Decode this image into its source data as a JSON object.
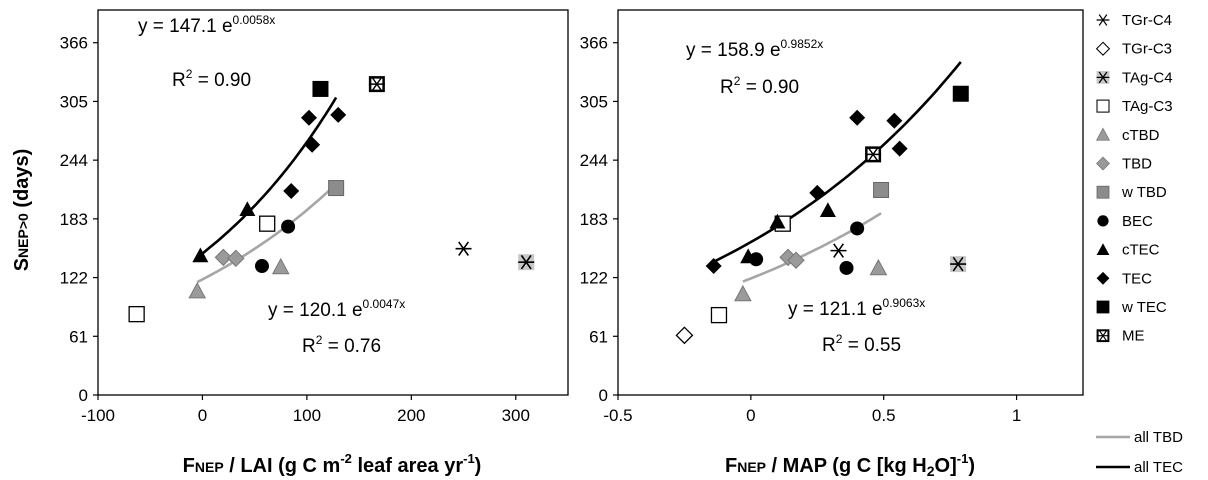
{
  "y_axis_label": {
    "main": "S",
    "sub": "NEP>0",
    "rest": " (days)"
  },
  "legend": {
    "items": [
      {
        "label": "TGr-C4",
        "marker": "asterisk-icon",
        "color": "#000000"
      },
      {
        "label": "TGr-C3",
        "marker": "open-diamond-icon",
        "color": "#000000"
      },
      {
        "label": "TAg-C4",
        "marker": "grey-square-asterisk-icon",
        "color": "#c8c8c8"
      },
      {
        "label": "TAg-C3",
        "marker": "open-square-icon",
        "color": "#000000"
      },
      {
        "label": "cTBD",
        "marker": "grey-triangle-icon",
        "color": "#9a9a9a"
      },
      {
        "label": "TBD",
        "marker": "grey-diamond-icon",
        "color": "#9a9a9a"
      },
      {
        "label": "w TBD",
        "marker": "grey-square-icon",
        "color": "#8c8c8c"
      },
      {
        "label": "BEC",
        "marker": "black-circle-icon",
        "color": "#000000"
      },
      {
        "label": "cTEC",
        "marker": "black-triangle-icon",
        "color": "#000000"
      },
      {
        "label": "TEC",
        "marker": "black-diamond-icon",
        "color": "#000000"
      },
      {
        "label": "w TEC",
        "marker": "black-square-icon",
        "color": "#000000"
      },
      {
        "label": "ME",
        "marker": "boxed-asterisk-icon",
        "color": "#000000"
      }
    ],
    "lines": [
      {
        "label": "all TBD",
        "color": "#a6a6a6"
      },
      {
        "label": "all TEC",
        "color": "#000000"
      }
    ]
  },
  "chart_data": [
    {
      "type": "scatter",
      "x_axis": {
        "label_main": "F",
        "label_sub": "NEP",
        "label_rest": " / LAI  (g C m",
        "label_sup": "-2",
        "label_tail": " leaf area yr",
        "label_sup2": "-1",
        "label_end": ")",
        "range": [
          -100,
          350
        ],
        "ticks": [
          -100,
          0,
          100,
          200,
          300
        ]
      },
      "y_axis": {
        "range": [
          0,
          400
        ],
        "ticks": [
          0,
          61,
          122,
          183,
          244,
          305,
          366
        ]
      },
      "series": [
        {
          "name": "TGr-C4",
          "marker": "asterisk",
          "points": [
            [
              250,
              152
            ]
          ]
        },
        {
          "name": "TAg-C4",
          "marker": "grey-square-asterisk",
          "points": [
            [
              310,
              138
            ]
          ]
        },
        {
          "name": "TAg-C3",
          "marker": "open-square",
          "points": [
            [
              -63,
              84
            ],
            [
              62,
              178
            ]
          ]
        },
        {
          "name": "cTBD",
          "marker": "grey-triangle",
          "points": [
            [
              -5,
              108
            ],
            [
              75,
              133
            ]
          ]
        },
        {
          "name": "TBD",
          "marker": "grey-diamond",
          "points": [
            [
              20,
              143
            ],
            [
              32,
              142
            ]
          ]
        },
        {
          "name": "w TBD",
          "marker": "grey-square",
          "points": [
            [
              128,
              215
            ]
          ]
        },
        {
          "name": "BEC",
          "marker": "black-circle",
          "points": [
            [
              57,
              134
            ],
            [
              82,
              175
            ]
          ]
        },
        {
          "name": "cTEC",
          "marker": "black-triangle",
          "points": [
            [
              -2,
              145
            ],
            [
              43,
              193
            ]
          ]
        },
        {
          "name": "TEC",
          "marker": "black-diamond",
          "points": [
            [
              85,
              212
            ],
            [
              102,
              288
            ],
            [
              105,
              260
            ],
            [
              130,
              291
            ]
          ]
        },
        {
          "name": "w TEC",
          "marker": "black-square",
          "points": [
            [
              113,
              318
            ]
          ]
        },
        {
          "name": "ME",
          "marker": "boxed-asterisk",
          "points": [
            [
              167,
              323
            ]
          ]
        }
      ],
      "fits": [
        {
          "name": "all TEC",
          "a": 147.1,
          "b": 0.0058,
          "x_range": [
            -5,
            128
          ],
          "color": "#000000",
          "equation": {
            "prefix": "y = 147.1 e",
            "exponent": "0.0058x"
          },
          "r2": {
            "prefix": "R",
            "sup": "2",
            "suffix": " = 0.90"
          }
        },
        {
          "name": "all TBD",
          "a": 120.1,
          "b": 0.0047,
          "x_range": [
            -5,
            128
          ],
          "color": "#a6a6a6",
          "equation": {
            "prefix": "y = 120.1 e",
            "exponent": "0.0047x"
          },
          "r2": {
            "prefix": "R",
            "sup": "2",
            "suffix": " = 0.76"
          }
        }
      ]
    },
    {
      "type": "scatter",
      "x_axis": {
        "label_main": "F",
        "label_sub": "NEP",
        "label_rest": " / MAP  (g C [kg H",
        "label_sub2": "2",
        "label_tail": "O]",
        "label_sup": "-1",
        "label_end": ")",
        "range": [
          -0.5,
          1.25
        ],
        "ticks": [
          "-0.5",
          "0",
          "0.5",
          "1"
        ]
      },
      "y_axis": {
        "range": [
          0,
          400
        ],
        "ticks": [
          0,
          61,
          122,
          183,
          244,
          305,
          366
        ]
      },
      "series": [
        {
          "name": "TGr-C4",
          "marker": "asterisk",
          "points": [
            [
              0.33,
              150
            ]
          ]
        },
        {
          "name": "TGr-C3",
          "marker": "open-diamond",
          "points": [
            [
              -0.25,
              62
            ]
          ]
        },
        {
          "name": "TAg-C4",
          "marker": "grey-square-asterisk",
          "points": [
            [
              0.78,
              136
            ]
          ]
        },
        {
          "name": "TAg-C3",
          "marker": "open-square",
          "points": [
            [
              -0.12,
              83
            ],
            [
              0.12,
              178
            ]
          ]
        },
        {
          "name": "cTBD",
          "marker": "grey-triangle",
          "points": [
            [
              -0.03,
              105
            ],
            [
              0.48,
              132
            ]
          ]
        },
        {
          "name": "TBD",
          "marker": "grey-diamond",
          "points": [
            [
              0.14,
              143
            ],
            [
              0.17,
              140
            ]
          ]
        },
        {
          "name": "w TBD",
          "marker": "grey-square",
          "points": [
            [
              0.49,
              213
            ]
          ]
        },
        {
          "name": "BEC",
          "marker": "black-circle",
          "points": [
            [
              0.02,
              141
            ],
            [
              0.36,
              132
            ],
            [
              0.4,
              173
            ]
          ]
        },
        {
          "name": "cTEC",
          "marker": "black-triangle",
          "points": [
            [
              -0.01,
              144
            ],
            [
              0.1,
              180
            ],
            [
              0.29,
              192
            ]
          ]
        },
        {
          "name": "TEC",
          "marker": "black-diamond",
          "points": [
            [
              -0.14,
              134
            ],
            [
              0.25,
              210
            ],
            [
              0.4,
              288
            ],
            [
              0.54,
              285
            ],
            [
              0.56,
              256
            ]
          ]
        },
        {
          "name": "w TEC",
          "marker": "black-square",
          "points": [
            [
              0.79,
              313
            ]
          ]
        },
        {
          "name": "ME",
          "marker": "boxed-asterisk",
          "points": [
            [
              0.46,
              250
            ]
          ]
        }
      ],
      "fits": [
        {
          "name": "all TEC",
          "a": 158.9,
          "b": 0.9852,
          "x_range": [
            -0.14,
            0.79
          ],
          "color": "#000000",
          "equation": {
            "prefix": "y = 158.9 e",
            "exponent": "0.9852x"
          },
          "r2": {
            "prefix": "R",
            "sup": "2",
            "suffix": " = 0.90"
          }
        },
        {
          "name": "all TBD",
          "a": 121.1,
          "b": 0.9063,
          "x_range": [
            -0.03,
            0.49
          ],
          "color": "#a6a6a6",
          "equation": {
            "prefix": "y = 121.1 e",
            "exponent": "0.9063x"
          },
          "r2": {
            "prefix": "R",
            "sup": "2",
            "suffix": " = 0.55"
          }
        }
      ]
    }
  ]
}
